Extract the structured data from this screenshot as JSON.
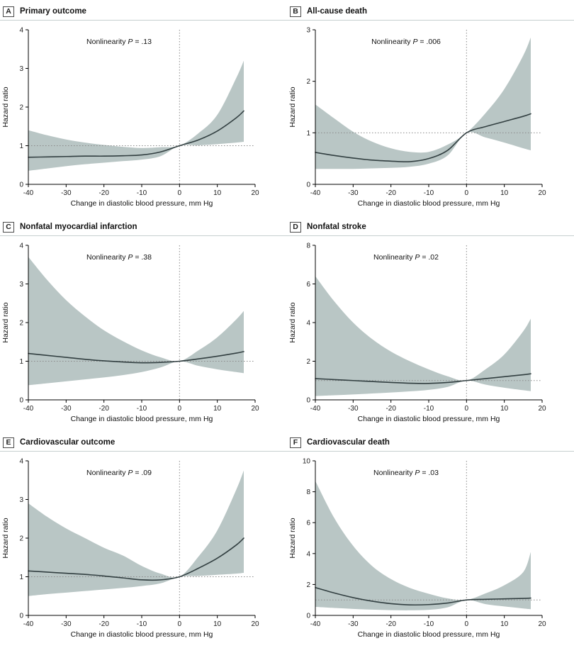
{
  "figure": {
    "x_label": "Change in diastolic blood pressure, mm Hg",
    "y_label": "Hazard ratio",
    "xlim": [
      -40,
      20
    ],
    "x_ticks": [
      -40,
      -30,
      -20,
      -10,
      0,
      10,
      20
    ],
    "grid": "off",
    "legend": "none",
    "colors": {
      "band": "#b9c6c5",
      "line": "#323f41",
      "ref": "#8a8a8a",
      "axis": "#000000",
      "top_rule": "#c6d0cf",
      "tick_text": "#222222"
    }
  },
  "chart_data": [
    {
      "type": "line",
      "panel_label": "A",
      "title": "Primary outcome",
      "annotation": {
        "prefix": "Nonlinearity ",
        "italic": "P",
        "suffix": " = .13"
      },
      "ylim": [
        0,
        4
      ],
      "y_ticks": [
        0,
        1,
        2,
        3,
        4
      ],
      "x": [
        -40,
        -35,
        -30,
        -25,
        -20,
        -15,
        -10,
        -5,
        0,
        5,
        10,
        15,
        17
      ],
      "reference": {
        "y": 1,
        "x": 0
      },
      "series": [
        {
          "name": "hazard-ratio",
          "values": [
            0.7,
            0.71,
            0.72,
            0.73,
            0.73,
            0.74,
            0.76,
            0.84,
            1.0,
            1.15,
            1.38,
            1.72,
            1.9
          ]
        },
        {
          "name": "ci-upper",
          "values": [
            1.4,
            1.27,
            1.16,
            1.08,
            1.02,
            0.97,
            0.94,
            0.96,
            1.0,
            1.32,
            1.8,
            2.75,
            3.2
          ]
        },
        {
          "name": "ci-lower",
          "values": [
            0.35,
            0.41,
            0.47,
            0.52,
            0.56,
            0.6,
            0.64,
            0.73,
            1.0,
            1.01,
            1.04,
            1.08,
            1.1
          ]
        }
      ]
    },
    {
      "type": "line",
      "panel_label": "B",
      "title": "All-cause death",
      "annotation": {
        "prefix": "Nonlinearity ",
        "italic": "P",
        "suffix": " = .006"
      },
      "ylim": [
        0,
        3
      ],
      "y_ticks": [
        0,
        1,
        2,
        3
      ],
      "x": [
        -40,
        -35,
        -30,
        -25,
        -20,
        -15,
        -10,
        -5,
        0,
        5,
        10,
        15,
        17
      ],
      "reference": {
        "y": 1,
        "x": 0
      },
      "series": [
        {
          "name": "hazard-ratio",
          "values": [
            0.62,
            0.56,
            0.51,
            0.47,
            0.45,
            0.44,
            0.5,
            0.66,
            1.0,
            1.12,
            1.22,
            1.32,
            1.37
          ]
        },
        {
          "name": "ci-upper",
          "values": [
            1.55,
            1.28,
            1.02,
            0.83,
            0.7,
            0.63,
            0.63,
            0.77,
            1.0,
            1.38,
            1.85,
            2.5,
            2.85
          ]
        },
        {
          "name": "ci-lower",
          "values": [
            0.3,
            0.3,
            0.3,
            0.31,
            0.32,
            0.34,
            0.4,
            0.56,
            1.0,
            0.91,
            0.81,
            0.7,
            0.66
          ]
        }
      ]
    },
    {
      "type": "line",
      "panel_label": "C",
      "title": "Nonfatal myocardial infarction",
      "annotation": {
        "prefix": "Nonlinearity ",
        "italic": "P",
        "suffix": " = .38"
      },
      "ylim": [
        0,
        4
      ],
      "y_ticks": [
        0,
        1,
        2,
        3,
        4
      ],
      "x": [
        -40,
        -35,
        -30,
        -25,
        -20,
        -15,
        -10,
        -5,
        0,
        5,
        10,
        15,
        17
      ],
      "reference": {
        "y": 1,
        "x": 0
      },
      "series": [
        {
          "name": "hazard-ratio",
          "values": [
            1.2,
            1.15,
            1.1,
            1.05,
            1.01,
            0.98,
            0.96,
            0.97,
            1.0,
            1.06,
            1.13,
            1.21,
            1.25
          ]
        },
        {
          "name": "ci-upper",
          "values": [
            3.7,
            3.1,
            2.58,
            2.16,
            1.8,
            1.52,
            1.28,
            1.1,
            1.0,
            1.28,
            1.62,
            2.08,
            2.3
          ]
        },
        {
          "name": "ci-lower",
          "values": [
            0.38,
            0.43,
            0.48,
            0.53,
            0.58,
            0.64,
            0.72,
            0.84,
            1.0,
            0.88,
            0.79,
            0.72,
            0.69
          ]
        }
      ]
    },
    {
      "type": "line",
      "panel_label": "D",
      "title": "Nonfatal stroke",
      "annotation": {
        "prefix": "Nonlinearity ",
        "italic": "P",
        "suffix": " = .02"
      },
      "ylim": [
        0,
        8
      ],
      "y_ticks": [
        0,
        2,
        4,
        6,
        8
      ],
      "x": [
        -40,
        -35,
        -30,
        -25,
        -20,
        -15,
        -10,
        -5,
        0,
        5,
        10,
        15,
        17
      ],
      "reference": {
        "y": 1,
        "x": 0
      },
      "series": [
        {
          "name": "hazard-ratio",
          "values": [
            1.1,
            1.05,
            1.0,
            0.95,
            0.9,
            0.86,
            0.85,
            0.9,
            1.0,
            1.1,
            1.2,
            1.3,
            1.35
          ]
        },
        {
          "name": "ci-upper",
          "values": [
            6.4,
            5.1,
            4.0,
            3.15,
            2.5,
            2.0,
            1.58,
            1.22,
            1.0,
            1.58,
            2.35,
            3.55,
            4.2
          ]
        },
        {
          "name": "ci-lower",
          "values": [
            0.2,
            0.24,
            0.28,
            0.33,
            0.38,
            0.44,
            0.52,
            0.67,
            1.0,
            0.79,
            0.63,
            0.5,
            0.45
          ]
        }
      ]
    },
    {
      "type": "line",
      "panel_label": "E",
      "title": "Cardiovascular outcome",
      "annotation": {
        "prefix": "Nonlinearity ",
        "italic": "P",
        "suffix": " = .09"
      },
      "ylim": [
        0,
        4
      ],
      "y_ticks": [
        0,
        1,
        2,
        3,
        4
      ],
      "x": [
        -40,
        -35,
        -30,
        -25,
        -20,
        -15,
        -10,
        -5,
        0,
        5,
        10,
        15,
        17
      ],
      "reference": {
        "y": 1,
        "x": 0
      },
      "series": [
        {
          "name": "hazard-ratio",
          "values": [
            1.15,
            1.12,
            1.09,
            1.06,
            1.02,
            0.97,
            0.92,
            0.92,
            1.0,
            1.22,
            1.48,
            1.82,
            2.0
          ]
        },
        {
          "name": "ci-upper",
          "values": [
            2.9,
            2.55,
            2.25,
            2.0,
            1.75,
            1.55,
            1.28,
            1.08,
            1.0,
            1.52,
            2.2,
            3.25,
            3.75
          ]
        },
        {
          "name": "ci-lower",
          "values": [
            0.5,
            0.55,
            0.59,
            0.63,
            0.67,
            0.71,
            0.76,
            0.83,
            1.0,
            1.02,
            1.05,
            1.08,
            1.1
          ]
        }
      ]
    },
    {
      "type": "line",
      "panel_label": "F",
      "title": "Cardiovascular death",
      "annotation": {
        "prefix": "Nonlinearity ",
        "italic": "P",
        "suffix": " = .03"
      },
      "ylim": [
        0,
        10
      ],
      "y_ticks": [
        0,
        2,
        4,
        6,
        8,
        10
      ],
      "x": [
        -40,
        -35,
        -30,
        -25,
        -20,
        -15,
        -10,
        -5,
        0,
        5,
        10,
        15,
        17
      ],
      "reference": {
        "y": 1,
        "x": 0
      },
      "series": [
        {
          "name": "hazard-ratio",
          "values": [
            1.8,
            1.45,
            1.15,
            0.92,
            0.76,
            0.68,
            0.7,
            0.8,
            1.0,
            1.04,
            1.07,
            1.1,
            1.12
          ]
        },
        {
          "name": "ci-upper",
          "values": [
            8.7,
            6.3,
            4.5,
            3.2,
            2.35,
            1.78,
            1.4,
            1.1,
            1.0,
            1.42,
            1.95,
            2.8,
            4.1
          ]
        },
        {
          "name": "ci-lower",
          "values": [
            0.55,
            0.48,
            0.42,
            0.37,
            0.34,
            0.33,
            0.36,
            0.52,
            1.0,
            0.73,
            0.58,
            0.45,
            0.4
          ]
        }
      ]
    }
  ]
}
